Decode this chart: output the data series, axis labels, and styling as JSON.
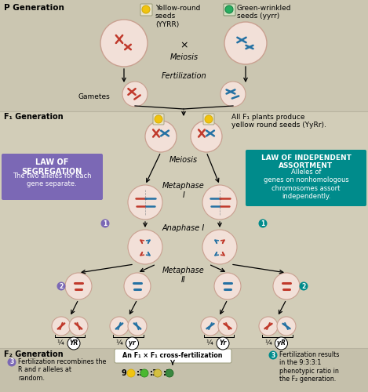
{
  "bg_main": "#d4cdb8",
  "bg_p": "#ccc7b2",
  "bg_f1": "#d0cbb6",
  "bg_f2": "#c5c0ab",
  "color_red": "#c0392b",
  "color_blue": "#2471a3",
  "color_yellow": "#f1c40f",
  "color_yellow_dark": "#d4ac0d",
  "color_green": "#27ae60",
  "color_green_dark": "#1e8449",
  "color_circle_fill": "#f2e0d8",
  "color_circle_edge": "#c9a090",
  "color_law_seg": "#7b68b5",
  "color_law_ind": "#008b8b",
  "title_p": "P Generation",
  "title_f1": "F₁ Generation",
  "title_f2": "F₂ Generation",
  "text_yr_round": "Yellow-round\nseeds\n(YYRR)",
  "text_gw": "Green-wrinkled\nseeds (yyrr)",
  "text_meiosis": "Meiosis",
  "text_fertilization": "Fertilization",
  "text_gametes": "Gametes",
  "text_f1": "All F₁ plants produce\nyellow round seeds (YyRr).",
  "text_meta1": "Metaphase\nI",
  "text_ana1": "Anaphase I",
  "text_meta2": "Metaphase\nII",
  "text_seg_title": "LAW OF\nSEGREGATION",
  "text_seg_body": "The two alleles for each\ngene separate.",
  "text_ind_title": "LAW OF INDEPENDENT\nASSORTMENT",
  "text_ind_body": "Alleles of\ngenes on nonhomologous\nchromosomes assort\nindependently.",
  "gamete_labels": [
    "YR",
    "yr",
    "Yr",
    "yR"
  ],
  "f2_center": "An F₁ × F₁ cross-fertilization",
  "f2_left": "Fertilization recombines the\nR and r alleles at\nrandom.",
  "f2_right": "Fertilization results\nin the 9:3:3:1\nphenotypic ratio in\nthe F₂ generation."
}
